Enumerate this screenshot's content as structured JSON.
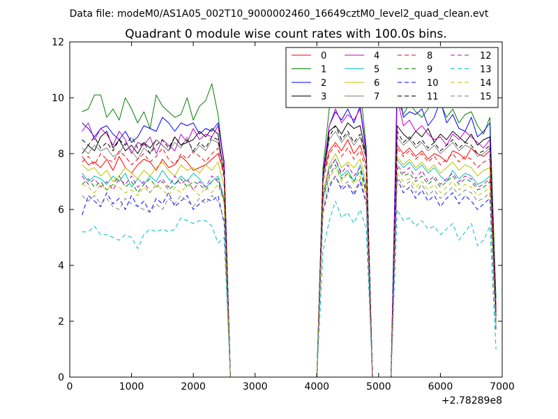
{
  "chart_data": {
    "type": "line",
    "suptitle": "Data file: modeM0/AS1A05_002T10_9000002460_16649cztM0_level2_quad_clean.evt",
    "title": "Quadrant 0 module wise count rates with 100.0s bins.",
    "xlabel": "",
    "ylabel": "",
    "x_offset_label": "+2.78289e8",
    "xlim": [
      0,
      7000
    ],
    "ylim": [
      0,
      12
    ],
    "x_ticks": [
      0,
      1000,
      2000,
      3000,
      4000,
      5000,
      6000,
      7000
    ],
    "y_ticks": [
      0,
      2,
      4,
      6,
      8,
      10,
      12
    ],
    "grid": false,
    "legend_position": "top-right",
    "legend_columns": 4,
    "x": [
      200,
      300,
      400,
      500,
      600,
      700,
      800,
      900,
      1000,
      1100,
      1200,
      1300,
      1400,
      1500,
      1600,
      1700,
      1800,
      1900,
      2000,
      2100,
      2200,
      2300,
      2400,
      2500,
      2600,
      2700,
      2800,
      2900,
      3000,
      3100,
      3200,
      3300,
      3400,
      3500,
      3600,
      3700,
      3800,
      3900,
      4000,
      4100,
      4200,
      4300,
      4400,
      4500,
      4600,
      4700,
      4800,
      4900,
      5000,
      5100,
      5200,
      5300,
      5400,
      5500,
      5600,
      5700,
      5800,
      5900,
      6000,
      6100,
      6200,
      6300,
      6400,
      6500,
      6600,
      6700,
      6800,
      6900
    ],
    "series": [
      {
        "name": "0",
        "color": "#ff0000",
        "dash": "solid",
        "values": [
          7.9,
          7.6,
          7.7,
          7.5,
          7.8,
          7.4,
          7.9,
          7.5,
          7.3,
          7.6,
          7.8,
          7.7,
          7.4,
          7.8,
          7.5,
          7.6,
          7.9,
          7.7,
          7.4,
          7.5,
          7.6,
          7.8,
          8.0,
          7.3,
          0,
          0,
          0,
          0,
          0,
          0,
          0,
          0,
          0,
          0,
          0,
          0,
          0,
          0,
          0,
          7.2,
          8.1,
          8.4,
          8.1,
          8.5,
          8.0,
          8.3,
          7.6,
          0,
          0,
          0,
          0,
          8.3,
          8.0,
          8.2,
          7.9,
          8.1,
          7.8,
          8.0,
          7.9,
          7.7,
          8.1,
          8.0,
          7.8,
          8.2,
          8.0,
          7.9,
          8.1,
          2.5
        ]
      },
      {
        "name": "1",
        "color": "#008000",
        "dash": "solid",
        "values": [
          9.5,
          9.6,
          10.1,
          10.1,
          9.3,
          9.6,
          9.2,
          10.0,
          9.6,
          9.1,
          9.5,
          8.9,
          10.1,
          9.7,
          9.5,
          9.3,
          9.4,
          10.0,
          9.2,
          9.7,
          9.9,
          10.5,
          9.4,
          7.5,
          0,
          0,
          0,
          0,
          0,
          0,
          0,
          0,
          0,
          0,
          0,
          0,
          0,
          0,
          0,
          7.5,
          9.6,
          10.5,
          9.8,
          10.0,
          9.7,
          10.4,
          8.2,
          0,
          0,
          0,
          0,
          10.0,
          9.4,
          9.8,
          9.5,
          9.3,
          9.6,
          10.2,
          9.8,
          9.3,
          9.6,
          9.1,
          9.4,
          9.5,
          9.0,
          8.7,
          9.3,
          2.8
        ]
      },
      {
        "name": "2",
        "color": "#0000ff",
        "dash": "solid",
        "values": [
          9.1,
          8.9,
          8.6,
          8.9,
          9.0,
          8.7,
          8.5,
          8.8,
          8.4,
          8.6,
          9.0,
          8.9,
          8.8,
          9.3,
          9.1,
          8.8,
          9.1,
          9.0,
          9.1,
          8.7,
          8.9,
          8.8,
          9.1,
          7.7,
          0,
          0,
          0,
          0,
          0,
          0,
          0,
          0,
          0,
          0,
          0,
          0,
          0,
          0,
          0,
          7.3,
          9.0,
          9.5,
          9.2,
          9.6,
          9.1,
          9.7,
          8.1,
          0,
          0,
          0,
          0,
          10.7,
          9.3,
          9.5,
          9.4,
          9.6,
          9.0,
          9.3,
          9.9,
          9.1,
          9.4,
          8.9,
          8.8,
          9.3,
          8.6,
          8.8,
          9.1,
          2.2
        ]
      },
      {
        "name": "3",
        "color": "#000000",
        "dash": "solid",
        "values": [
          8.0,
          8.3,
          8.1,
          8.6,
          8.8,
          8.2,
          8.5,
          8.1,
          8.3,
          8.0,
          8.4,
          8.2,
          8.5,
          8.3,
          8.1,
          8.6,
          8.3,
          8.4,
          8.5,
          8.8,
          8.6,
          8.9,
          8.7,
          7.2,
          0,
          0,
          0,
          0,
          0,
          0,
          0,
          0,
          0,
          0,
          0,
          0,
          0,
          0,
          0,
          7.0,
          8.8,
          9.0,
          8.7,
          9.1,
          8.9,
          9.0,
          7.9,
          0,
          0,
          0,
          0,
          9.0,
          8.7,
          8.5,
          8.8,
          8.6,
          8.9,
          8.4,
          8.7,
          8.5,
          8.8,
          8.6,
          8.4,
          8.7,
          8.3,
          8.5,
          8.6,
          2.3
        ]
      },
      {
        "name": "4",
        "color": "#bf00bf",
        "dash": "solid",
        "values": [
          8.8,
          9.1,
          8.5,
          8.9,
          8.7,
          8.3,
          8.8,
          8.5,
          8.0,
          8.4,
          8.3,
          8.6,
          8.0,
          8.5,
          8.3,
          8.1,
          8.7,
          8.4,
          8.9,
          8.5,
          8.7,
          8.6,
          9.0,
          7.6,
          0,
          0,
          0,
          0,
          0,
          0,
          0,
          0,
          0,
          0,
          0,
          0,
          0,
          0,
          0,
          7.2,
          9.0,
          9.6,
          9.1,
          9.4,
          9.2,
          9.6,
          8.0,
          0,
          0,
          0,
          0,
          10.0,
          9.0,
          9.2,
          8.8,
          9.0,
          8.7,
          8.5,
          8.6,
          8.3,
          8.7,
          8.5,
          8.8,
          8.6,
          8.4,
          8.2,
          8.5,
          2.4
        ]
      },
      {
        "name": "5",
        "color": "#00bfbf",
        "dash": "solid",
        "values": [
          7.3,
          7.0,
          7.2,
          7.1,
          6.9,
          7.2,
          7.0,
          7.3,
          6.8,
          7.1,
          6.9,
          7.2,
          7.0,
          7.4,
          7.1,
          6.9,
          7.2,
          7.0,
          7.3,
          7.1,
          6.8,
          7.0,
          7.2,
          6.4,
          0,
          0,
          0,
          0,
          0,
          0,
          0,
          0,
          0,
          0,
          0,
          0,
          0,
          0,
          0,
          6.4,
          7.5,
          7.8,
          7.2,
          7.4,
          7.0,
          7.6,
          6.8,
          0,
          0,
          0,
          0,
          7.8,
          7.5,
          7.7,
          7.4,
          7.6,
          7.3,
          7.5,
          7.2,
          7.0,
          7.4,
          7.1,
          7.3,
          7.2,
          6.9,
          7.0,
          7.2,
          1.8
        ]
      },
      {
        "name": "6",
        "color": "#bfbf00",
        "dash": "solid",
        "values": [
          7.6,
          7.4,
          7.5,
          7.2,
          7.4,
          7.0,
          7.2,
          7.5,
          7.3,
          7.1,
          7.4,
          7.2,
          7.5,
          7.7,
          7.4,
          7.2,
          7.6,
          7.4,
          7.5,
          7.3,
          7.6,
          7.4,
          7.7,
          6.8,
          0,
          0,
          0,
          0,
          0,
          0,
          0,
          0,
          0,
          0,
          0,
          0,
          0,
          0,
          0,
          6.6,
          7.6,
          8.0,
          7.5,
          7.7,
          7.5,
          7.8,
          7.0,
          0,
          0,
          0,
          0,
          7.9,
          7.6,
          7.8,
          7.5,
          7.7,
          7.4,
          7.6,
          7.3,
          7.5,
          7.7,
          7.4,
          7.6,
          7.5,
          7.2,
          7.4,
          7.5,
          2.0
        ]
      },
      {
        "name": "7",
        "color": "#808080",
        "dash": "solid",
        "values": [
          8.2,
          8.0,
          8.3,
          8.1,
          8.2,
          7.9,
          8.0,
          8.4,
          8.1,
          7.8,
          8.2,
          8.0,
          8.5,
          8.3,
          8.1,
          8.4,
          8.2,
          8.6,
          8.0,
          8.3,
          8.1,
          8.5,
          8.4,
          7.3,
          0,
          0,
          0,
          0,
          0,
          0,
          0,
          0,
          0,
          0,
          0,
          0,
          0,
          0,
          0,
          7.1,
          8.5,
          8.8,
          8.4,
          8.7,
          8.3,
          8.6,
          7.8,
          0,
          0,
          0,
          0,
          8.6,
          8.3,
          8.5,
          8.2,
          8.4,
          8.1,
          8.3,
          8.0,
          8.2,
          8.4,
          8.1,
          8.3,
          8.2,
          7.9,
          8.0,
          8.2,
          2.1
        ]
      },
      {
        "name": "8",
        "color": "#ff0000",
        "dash": "dashed",
        "values": [
          7.7,
          7.9,
          7.6,
          8.0,
          7.8,
          7.7,
          8.1,
          7.9,
          7.6,
          7.8,
          8.0,
          7.7,
          7.9,
          8.2,
          7.8,
          7.6,
          8.0,
          7.8,
          8.1,
          7.9,
          7.7,
          8.0,
          8.2,
          7.1,
          0,
          0,
          0,
          0,
          0,
          0,
          0,
          0,
          0,
          0,
          0,
          0,
          0,
          0,
          0,
          7.0,
          8.0,
          8.3,
          7.9,
          8.2,
          7.8,
          8.1,
          7.4,
          0,
          0,
          0,
          0,
          8.2,
          7.9,
          8.1,
          7.8,
          8.0,
          7.7,
          7.9,
          7.6,
          7.8,
          8.0,
          7.7,
          7.9,
          7.8,
          7.5,
          7.7,
          7.8,
          2.2
        ]
      },
      {
        "name": "9",
        "color": "#008000",
        "dash": "dashed",
        "values": [
          6.9,
          7.1,
          6.8,
          7.0,
          6.7,
          6.9,
          7.2,
          6.8,
          7.0,
          6.6,
          6.9,
          7.1,
          6.8,
          7.0,
          6.7,
          6.9,
          7.1,
          6.8,
          7.0,
          6.9,
          6.7,
          7.0,
          7.1,
          6.3,
          0,
          0,
          0,
          0,
          0,
          0,
          0,
          0,
          0,
          0,
          0,
          0,
          0,
          0,
          0,
          6.4,
          7.2,
          7.6,
          7.1,
          7.3,
          7.0,
          7.4,
          6.6,
          0,
          0,
          0,
          0,
          7.5,
          7.2,
          7.3,
          7.0,
          7.2,
          6.9,
          7.1,
          6.8,
          7.0,
          7.2,
          6.9,
          7.1,
          7.0,
          6.7,
          6.8,
          7.0,
          1.9
        ]
      },
      {
        "name": "10",
        "color": "#0000ff",
        "dash": "dashed",
        "values": [
          5.8,
          6.5,
          6.3,
          6.1,
          6.6,
          6.2,
          6.4,
          6.0,
          6.5,
          6.1,
          6.3,
          5.9,
          6.4,
          6.2,
          6.6,
          6.1,
          6.3,
          6.5,
          6.0,
          6.2,
          6.4,
          6.3,
          6.5,
          5.5,
          0,
          0,
          0,
          0,
          0,
          0,
          0,
          0,
          0,
          0,
          0,
          0,
          0,
          0,
          0,
          5.9,
          6.8,
          7.2,
          6.7,
          6.9,
          6.5,
          7.0,
          6.2,
          0,
          0,
          0,
          0,
          7.1,
          6.6,
          6.8,
          6.4,
          6.7,
          6.3,
          6.5,
          6.1,
          6.4,
          6.6,
          6.2,
          6.5,
          6.3,
          6.0,
          6.2,
          6.4,
          1.7
        ]
      },
      {
        "name": "11",
        "color": "#000000",
        "dash": "dashed",
        "values": [
          8.5,
          8.3,
          8.6,
          8.2,
          8.4,
          8.1,
          8.5,
          8.3,
          8.6,
          8.2,
          8.4,
          8.0,
          8.3,
          8.5,
          8.2,
          8.6,
          8.3,
          8.5,
          8.1,
          8.4,
          8.2,
          8.6,
          8.5,
          7.4,
          0,
          0,
          0,
          0,
          0,
          0,
          0,
          0,
          0,
          0,
          0,
          0,
          0,
          0,
          0,
          7.2,
          8.6,
          9.0,
          8.5,
          8.8,
          8.4,
          8.7,
          7.9,
          0,
          0,
          0,
          0,
          8.8,
          8.4,
          8.6,
          8.3,
          8.5,
          8.2,
          8.4,
          8.1,
          8.3,
          8.5,
          8.2,
          8.4,
          8.3,
          8.0,
          8.1,
          8.3,
          2.2
        ]
      },
      {
        "name": "12",
        "color": "#bf00bf",
        "dash": "dashed",
        "values": [
          7.2,
          6.9,
          7.1,
          6.8,
          7.0,
          6.7,
          7.1,
          6.9,
          7.2,
          6.8,
          7.0,
          6.6,
          6.9,
          7.1,
          6.8,
          7.2,
          6.9,
          7.1,
          6.7,
          7.0,
          6.8,
          7.2,
          7.0,
          6.3,
          0,
          0,
          0,
          0,
          0,
          0,
          0,
          0,
          0,
          0,
          0,
          0,
          0,
          0,
          0,
          6.5,
          7.4,
          7.8,
          7.3,
          7.6,
          7.2,
          7.5,
          6.7,
          0,
          0,
          0,
          0,
          7.6,
          7.3,
          7.5,
          7.1,
          7.4,
          7.0,
          7.2,
          6.9,
          7.1,
          7.3,
          7.0,
          7.2,
          7.1,
          6.8,
          6.9,
          7.1,
          1.9
        ]
      },
      {
        "name": "13",
        "color": "#00bfbf",
        "dash": "dashed",
        "values": [
          5.2,
          5.2,
          5.4,
          5.1,
          5.1,
          5.0,
          4.9,
          5.1,
          5.0,
          4.6,
          5.1,
          5.3,
          5.2,
          5.3,
          5.2,
          5.3,
          5.7,
          5.6,
          5.5,
          5.6,
          5.6,
          5.4,
          4.8,
          5.0,
          0,
          0,
          0,
          0,
          0,
          0,
          0,
          0,
          0,
          0,
          0,
          0,
          0,
          0,
          0,
          4.5,
          5.6,
          6.3,
          5.7,
          5.9,
          5.5,
          6.0,
          5.3,
          0,
          0,
          0,
          0,
          6.0,
          5.6,
          5.7,
          5.4,
          5.6,
          5.3,
          5.4,
          5.1,
          5.3,
          5.5,
          4.9,
          5.2,
          5.5,
          4.7,
          4.9,
          5.4,
          1.0
        ]
      },
      {
        "name": "14",
        "color": "#bfbf00",
        "dash": "dashed",
        "values": [
          6.9,
          6.8,
          6.6,
          6.9,
          6.7,
          6.9,
          6.8,
          6.6,
          6.7,
          6.5,
          6.8,
          6.6,
          6.9,
          6.7,
          6.5,
          6.8,
          6.6,
          6.9,
          6.7,
          6.5,
          6.8,
          6.6,
          6.9,
          6.2,
          0,
          0,
          0,
          0,
          0,
          0,
          0,
          0,
          0,
          0,
          0,
          0,
          0,
          0,
          0,
          6.2,
          7.1,
          7.5,
          7.0,
          7.3,
          6.9,
          7.2,
          6.5,
          0,
          0,
          0,
          0,
          7.3,
          7.0,
          7.1,
          6.8,
          7.0,
          6.7,
          6.9,
          6.6,
          6.8,
          7.0,
          6.7,
          6.9,
          6.8,
          6.5,
          6.6,
          6.8,
          1.8
        ]
      },
      {
        "name": "15",
        "color": "#808080",
        "dash": "dashed",
        "values": [
          6.5,
          6.3,
          6.5,
          6.2,
          6.4,
          6.1,
          6.0,
          6.4,
          6.2,
          6.1,
          6.0,
          5.9,
          6.2,
          6.0,
          6.4,
          6.2,
          6.5,
          6.3,
          6.1,
          6.4,
          6.2,
          6.5,
          6.3,
          5.6,
          0,
          0,
          0,
          0,
          0,
          0,
          0,
          0,
          0,
          0,
          0,
          0,
          0,
          0,
          0,
          6.0,
          6.9,
          7.2,
          6.8,
          7.0,
          6.6,
          7.1,
          6.3,
          0,
          0,
          0,
          0,
          7.2,
          6.8,
          7.0,
          6.6,
          6.9,
          6.5,
          6.7,
          6.4,
          6.6,
          6.8,
          6.5,
          6.7,
          6.6,
          6.3,
          6.4,
          6.6,
          1.8
        ]
      }
    ]
  }
}
